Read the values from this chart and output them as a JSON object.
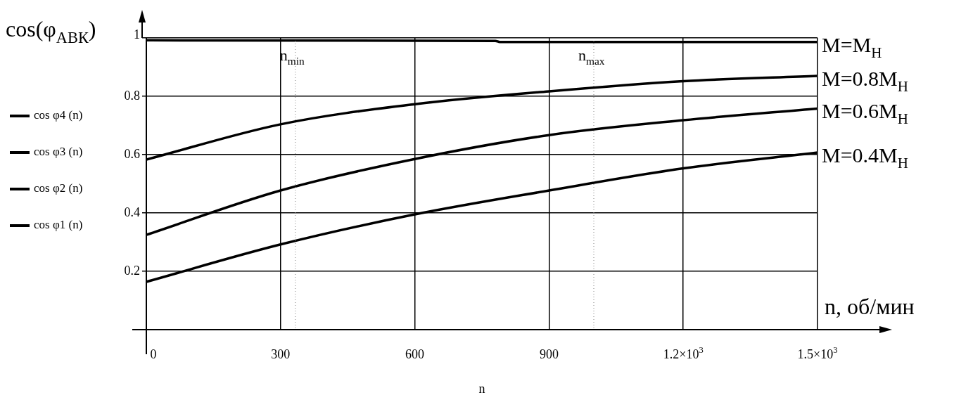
{
  "chart_data": {
    "type": "line",
    "xlabel": "n",
    "ylabel": "cos(φ$_{АВК}$)",
    "x": [
      0,
      300,
      600,
      900,
      1200,
      1500
    ],
    "series": [
      {
        "name": "cos φ1 (n)",
        "color": "#000000",
        "values": [
          0.164,
          0.292,
          0.395,
          0.477,
          0.553,
          0.607
        ]
      },
      {
        "name": "cos φ2 (n)",
        "color": "#000000",
        "values": [
          0.325,
          0.477,
          0.585,
          0.667,
          0.718,
          0.758
        ]
      },
      {
        "name": "cos φ3 (n)",
        "color": "#000000",
        "values": [
          0.583,
          0.704,
          0.773,
          0.817,
          0.852,
          0.87
        ]
      },
      {
        "name": "cos φ4 (n)",
        "color": "#000000",
        "x": [
          0,
          780,
          790,
          1500
        ],
        "values": [
          0.992,
          0.99,
          0.986,
          0.986
        ]
      }
    ],
    "xlim": [
      0,
      1500
    ],
    "ylim": [
      0,
      1
    ],
    "xticks": [
      0,
      300,
      600,
      900,
      {
        "value": 1200,
        "label": "1.2×10$^{3}$"
      },
      {
        "value": 1500,
        "label": "1.5×10$^{3}$"
      }
    ],
    "yticks": [
      0.2,
      0.4,
      0.6,
      0.8,
      1
    ],
    "grid": true,
    "legend": "left",
    "line_style": "solid",
    "marker": "none",
    "ref_lines": [
      {
        "axis": "x",
        "value": 333,
        "label": "n$_{min}$",
        "color": "#808080",
        "line_style": "dotted"
      },
      {
        "axis": "x",
        "value": 1000,
        "label": "n$_{max}$",
        "color": "#808080",
        "line_style": "dotted"
      }
    ],
    "annotations": [
      "M=M$_{Н}$",
      "M=0.8M$_{Н}$",
      "M=0.6M$_{Н}$",
      "M=0.4M$_{Н}$",
      "n, об/мин"
    ]
  }
}
